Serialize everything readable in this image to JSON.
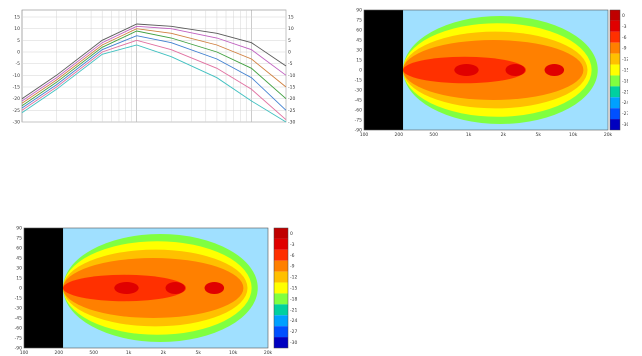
{
  "chart_data": [
    {
      "type": "line",
      "title": "",
      "xlabel": "",
      "ylabel": "",
      "x_scale": "log",
      "grid": true,
      "y_ticks": [
        "15",
        "10",
        "5",
        "0",
        "-5",
        "-10",
        "-15",
        "-20",
        "-25",
        "-30"
      ],
      "y_ticks_right": [
        "15",
        "10",
        "5",
        "0",
        "-5",
        "-10",
        "-15",
        "-20",
        "-25",
        "-30"
      ],
      "ylim": [
        -30,
        18
      ],
      "x": [
        100,
        200,
        500,
        1000,
        2000,
        5000,
        10000,
        20000
      ],
      "series": [
        {
          "values": [
            -20,
            -10,
            5,
            12,
            11,
            8,
            4,
            -6
          ]
        },
        {
          "values": [
            -21,
            -11,
            4,
            11,
            10,
            6,
            1,
            -10
          ]
        },
        {
          "values": [
            -22,
            -12,
            3,
            10,
            8,
            3,
            -3,
            -15
          ]
        },
        {
          "values": [
            -23,
            -13,
            2,
            9,
            6,
            0,
            -7,
            -20
          ]
        },
        {
          "values": [
            -24,
            -14,
            1,
            7,
            4,
            -3,
            -11,
            -25
          ]
        },
        {
          "values": [
            -25,
            -15,
            0,
            5,
            1,
            -7,
            -16,
            -29
          ]
        },
        {
          "values": [
            -26,
            -16,
            -1,
            3,
            -2,
            -11,
            -21,
            -30
          ]
        }
      ],
      "series_colors": [
        "#5a5a5a",
        "#c060c0",
        "#d08040",
        "#40a040",
        "#4080d0",
        "#e070a0",
        "#40c0c0"
      ]
    },
    {
      "type": "heatmap",
      "title": "",
      "y_ticks": [
        "90",
        "75",
        "60",
        "45",
        "30",
        "15",
        "0",
        "-15",
        "-30",
        "-45",
        "-60",
        "-75",
        "-90"
      ],
      "x_ticks": [
        "100",
        "200",
        "500",
        "1k",
        "2k",
        "5k",
        "10k",
        "20k"
      ],
      "colorbar_ticks": [
        "0",
        "-3",
        "-6",
        "-9",
        "-12",
        "-15",
        "-18",
        "-21",
        "-24",
        "-27",
        "-30"
      ],
      "colorbar_colors": [
        "#c00000",
        "#e00000",
        "#ff3000",
        "#ff8000",
        "#ffc000",
        "#ffff00",
        "#80ff40",
        "#00d0a0",
        "#00a0ff",
        "#0050ff",
        "#0000c0"
      ]
    },
    {
      "type": "heatmap",
      "title": "",
      "y_ticks": [
        "90",
        "75",
        "60",
        "45",
        "30",
        "15",
        "0",
        "-15",
        "-30",
        "-45",
        "-60",
        "-75",
        "-90"
      ],
      "x_ticks": [
        "100",
        "200",
        "500",
        "1k",
        "2k",
        "5k",
        "10k",
        "20k"
      ],
      "colorbar_ticks": [
        "0",
        "-3",
        "-6",
        "-9",
        "-12",
        "-15",
        "-18",
        "-21",
        "-24",
        "-27",
        "-30"
      ],
      "colorbar_colors": [
        "#c00000",
        "#e00000",
        "#ff3000",
        "#ff8000",
        "#ffc000",
        "#ffff00",
        "#80ff40",
        "#00d0a0",
        "#00a0ff",
        "#0050ff",
        "#0000c0"
      ]
    }
  ]
}
